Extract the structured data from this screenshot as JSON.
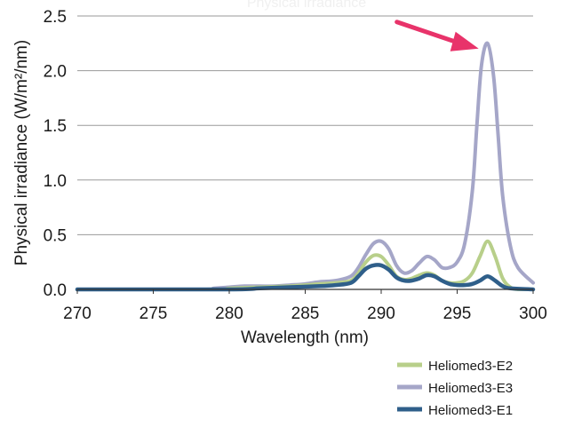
{
  "chart_data": {
    "type": "line",
    "title": "Physical irradiance",
    "xlabel": "Wavelength (nm)",
    "ylabel": "Physical irradiance (W/m²/nm)",
    "xlim": [
      270,
      300
    ],
    "ylim": [
      0,
      2.5
    ],
    "x_ticks": [
      "270",
      "275",
      "280",
      "285",
      "290",
      "295",
      "300"
    ],
    "y_ticks": [
      "0.0",
      "0.5",
      "1.0",
      "1.5",
      "2.0",
      "2.5"
    ],
    "grid": true,
    "legend_position": "bottom-right",
    "series": [
      {
        "name": "Heliomed3-E3",
        "color": "#a5a6c8",
        "x": [
          270,
          278,
          279,
          280,
          281,
          282,
          283,
          284,
          285,
          286,
          287,
          288,
          288.5,
          289,
          289.5,
          290,
          290.5,
          291,
          291.5,
          292,
          292.5,
          293,
          293.5,
          294,
          294.5,
          295,
          295.5,
          296,
          296.3,
          296.6,
          297,
          297.4,
          297.7,
          298,
          298.5,
          299,
          300
        ],
        "y": [
          0.0,
          0.0,
          0.01,
          0.02,
          0.03,
          0.03,
          0.03,
          0.04,
          0.05,
          0.07,
          0.08,
          0.12,
          0.2,
          0.32,
          0.42,
          0.44,
          0.37,
          0.22,
          0.15,
          0.17,
          0.24,
          0.3,
          0.27,
          0.2,
          0.2,
          0.25,
          0.42,
          0.9,
          1.5,
          2.05,
          2.25,
          1.95,
          1.4,
          0.85,
          0.4,
          0.2,
          0.06
        ]
      },
      {
        "name": "Heliomed3-E2",
        "color": "#b8cf8a",
        "x": [
          270,
          279,
          280,
          282,
          284,
          286,
          287,
          288,
          288.5,
          289,
          289.5,
          290,
          290.5,
          291,
          291.5,
          292,
          292.5,
          293,
          293.5,
          294,
          294.5,
          295,
          295.5,
          296,
          296.5,
          297,
          297.5,
          298,
          298.5,
          299,
          300
        ],
        "y": [
          0.0,
          0.0,
          0.01,
          0.02,
          0.03,
          0.05,
          0.06,
          0.08,
          0.15,
          0.25,
          0.31,
          0.3,
          0.22,
          0.12,
          0.09,
          0.1,
          0.13,
          0.15,
          0.13,
          0.08,
          0.06,
          0.06,
          0.08,
          0.15,
          0.3,
          0.44,
          0.3,
          0.1,
          0.02,
          0.0,
          0.0
        ]
      },
      {
        "name": "Heliomed3-E1",
        "color": "#2f5f8a",
        "x": [
          270,
          280,
          282,
          284,
          286,
          287,
          288,
          288.5,
          289,
          289.5,
          290,
          290.5,
          291,
          291.5,
          292,
          292.5,
          293,
          293.5,
          294,
          294.5,
          295,
          295.5,
          296,
          296.5,
          297,
          297.5,
          298,
          298.5,
          300
        ],
        "y": [
          0.0,
          0.0,
          0.01,
          0.02,
          0.03,
          0.04,
          0.06,
          0.12,
          0.19,
          0.22,
          0.22,
          0.18,
          0.11,
          0.08,
          0.08,
          0.1,
          0.13,
          0.12,
          0.08,
          0.05,
          0.04,
          0.04,
          0.05,
          0.08,
          0.12,
          0.08,
          0.03,
          0.01,
          0.0
        ]
      }
    ],
    "legend_order": [
      "Heliomed3-E2",
      "Heliomed3-E3",
      "Heliomed3-E1"
    ],
    "annotations": [
      {
        "type": "arrow",
        "target_x": 297,
        "target_y": 2.25,
        "color": "#e8336a"
      }
    ]
  }
}
